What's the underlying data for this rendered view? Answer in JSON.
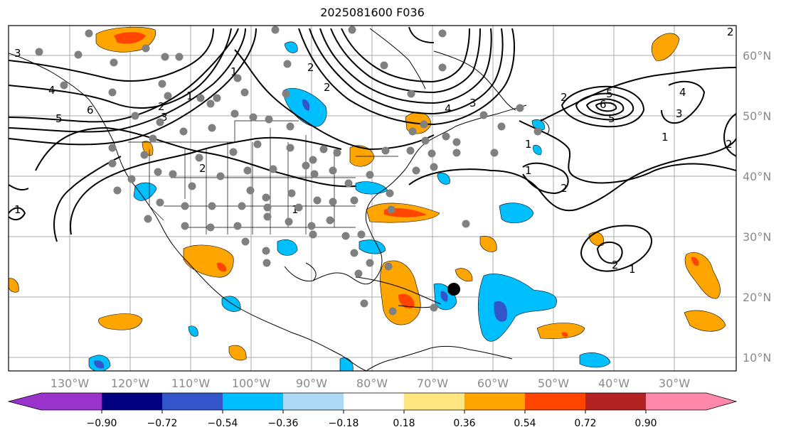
{
  "title": "2025081600 F036",
  "lon_labels": [
    "130°W",
    "120°W",
    "110°W",
    "100°W",
    "90°W",
    "80°W",
    "70°W",
    "60°W",
    "50°W",
    "40°W",
    "30°W"
  ],
  "lat_labels": [
    "60°N",
    "50°N",
    "40°N",
    "30°N",
    "20°N",
    "10°N"
  ],
  "colorbar": {
    "colors": [
      "#9933cc",
      "#000080",
      "#3355cc",
      "#00bfff",
      "#add8f5",
      "#ffffff",
      "#ffe680",
      "#ffa500",
      "#ff4500",
      "#b22222",
      "#ff88aa"
    ],
    "ticks": [
      "−0.90",
      "−0.72",
      "−0.54",
      "−0.36",
      "−0.18",
      "0.18",
      "0.36",
      "0.54",
      "0.72",
      "0.90"
    ]
  },
  "contour_labels": [
    "3",
    "4",
    "5",
    "6",
    "1",
    "2",
    "3",
    "1",
    "2",
    "1",
    "2",
    "2",
    "3",
    "4",
    "5",
    "6",
    "4",
    "3",
    "1",
    "2",
    "1",
    "2",
    "5",
    "2",
    "1",
    "1",
    "2",
    "2",
    "1"
  ]
}
